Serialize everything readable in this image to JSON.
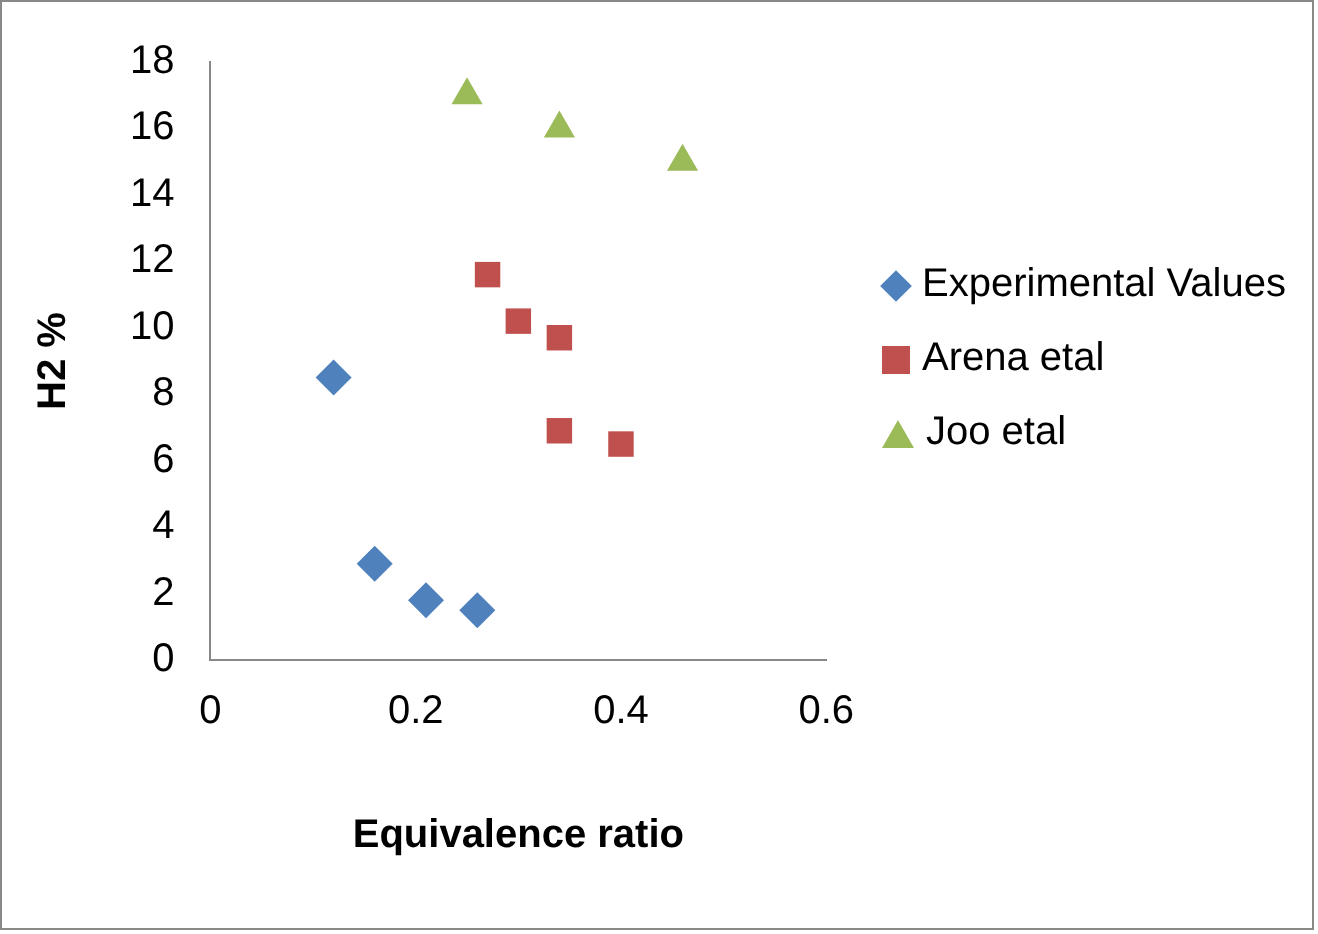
{
  "chart_data": {
    "type": "scatter",
    "xlabel": "Equivalence ratio",
    "ylabel": "H2 %",
    "xlim": [
      0,
      0.6
    ],
    "xticks": [
      0,
      0.2,
      0.4,
      0.6
    ],
    "ylim": [
      0,
      18
    ],
    "yticks": [
      0,
      2,
      4,
      6,
      8,
      10,
      12,
      14,
      16,
      18
    ],
    "grid": false,
    "legend": "right",
    "series": [
      {
        "name": "Experimental Values",
        "color": "#4f81bd",
        "marker": "diamond",
        "x": [
          0.12,
          0.16,
          0.21,
          0.26
        ],
        "values": [
          8.5,
          2.9,
          1.8,
          1.5
        ]
      },
      {
        "name": "Arena etal",
        "color": "#c0504d",
        "marker": "square",
        "x": [
          0.27,
          0.3,
          0.34,
          0.34,
          0.4
        ],
        "values": [
          11.6,
          10.2,
          9.7,
          6.9,
          6.5
        ]
      },
      {
        "name": "Joo etal",
        "color": "#9bbb59",
        "marker": "triangle",
        "x": [
          0.25,
          0.34,
          0.46
        ],
        "values": [
          17,
          16,
          15
        ]
      }
    ]
  }
}
